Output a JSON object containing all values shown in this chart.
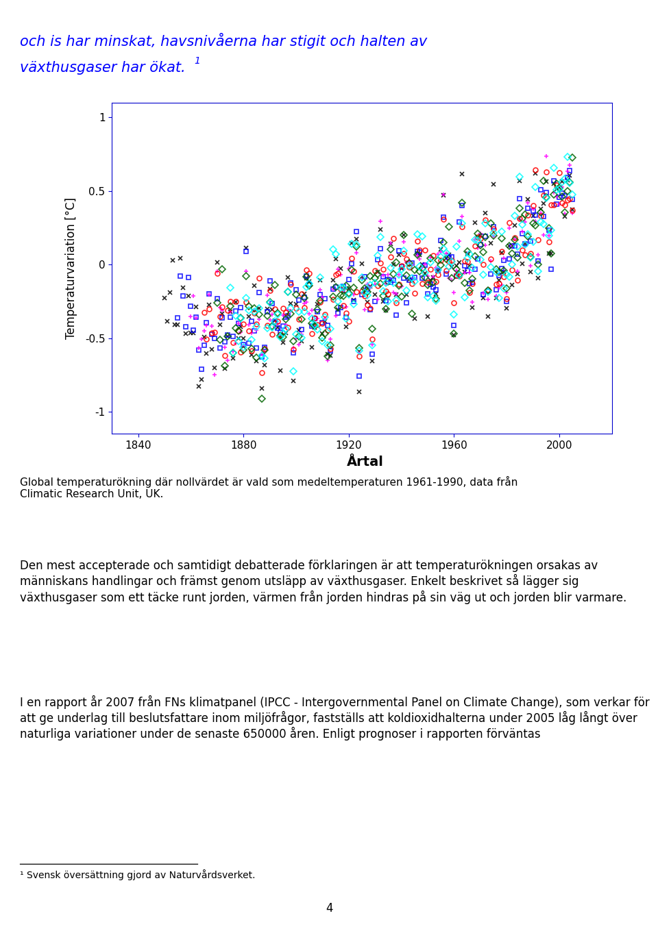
{
  "top_text_line1": "och is har minskat, havsnivåerna har stigit och halten av",
  "top_text_line2": "växthusgaser har ökat.",
  "top_text_superscript": "1",
  "top_text_color": "#0000FF",
  "chart_ylabel": "Temperaturvariation [°C]",
  "chart_xlabel": "Årtal",
  "chart_yticks": [
    -1,
    -0.5,
    0,
    0.5,
    1
  ],
  "chart_xticks": [
    1840,
    1880,
    1920,
    1960,
    2000
  ],
  "chart_xlim": [
    1830,
    2020
  ],
  "chart_ylim": [
    -1.15,
    1.1
  ],
  "caption_text": "Global temperaturökning där nollvärdet är vald som medeltemperaturen 1961-1990, data från\nClimatic Research Unit, UK.",
  "paragraph1": "Den mest accepterade och samtidigt debatterade förklaringen är att temperaturökningen orsakas av människans handlingar och främst genom utsläpp av växthusgaser. Enkelt beskrivet så lägger sig växthusgaser som ett täcke runt jorden, värmen från jorden hindras på sin väg ut och jorden blir varmare.",
  "paragraph2": "I en rapport år 2007 från FNs klimatpanel (IPCC - Intergovernmental Panel on Climate Change), som verkar för att ge underlag till beslutsfattare inom miljöfrågor, fastställs att koldioxidhalterna under 2005 låg långt över naturliga variationer under de senaste 650000 åren. Enligt prognoser i rapporten förväntas",
  "footnote": "¹ Svensk översättning gjord av Naturvårdsverket.",
  "page_number": "4",
  "seed": 42
}
